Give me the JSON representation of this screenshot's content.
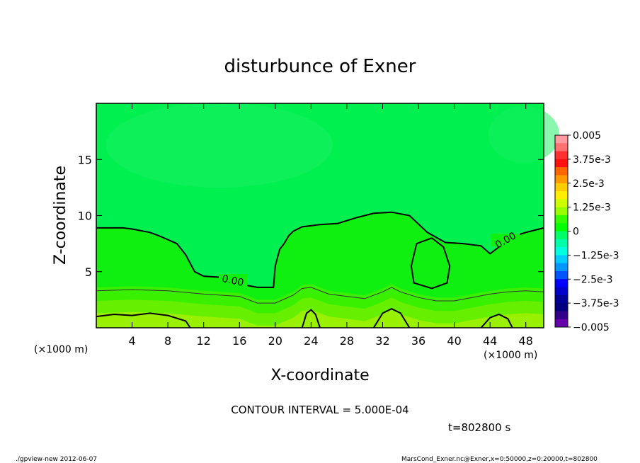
{
  "chart_data": {
    "type": "heatmap",
    "title": "disturbunce of Exner",
    "xlabel": "X-coordinate",
    "ylabel": "Z-coordinate",
    "x_unit_left": "(×1000 m)",
    "x_unit_right": "(×1000 m)",
    "xlim": [
      0,
      50
    ],
    "ylim": [
      0,
      20
    ],
    "x_ticks": [
      4,
      8,
      12,
      16,
      20,
      24,
      28,
      32,
      36,
      40,
      44,
      48
    ],
    "y_ticks": [
      5,
      10,
      15
    ],
    "contour_interval_text": "CONTOUR INTERVAL = 5.000E-04",
    "time_text": "t=802800 s",
    "contour_labels": [
      "0.00",
      "0.00"
    ],
    "zero_contour_upper": [
      [
        0,
        8.9
      ],
      [
        3,
        8.9
      ],
      [
        4,
        8.8
      ],
      [
        6,
        8.5
      ],
      [
        7,
        8.2
      ],
      [
        9,
        7.5
      ],
      [
        10,
        6.5
      ],
      [
        11,
        5.0
      ],
      [
        12,
        4.6
      ],
      [
        14,
        4.5
      ],
      [
        16,
        3.9
      ],
      [
        18,
        3.6
      ],
      [
        19.8,
        3.6
      ],
      [
        20,
        5.5
      ],
      [
        20.5,
        7.0
      ],
      [
        21,
        7.5
      ],
      [
        21.5,
        8.2
      ],
      [
        22,
        8.6
      ],
      [
        23,
        9.0
      ],
      [
        25,
        9.2
      ],
      [
        27,
        9.3
      ],
      [
        29,
        9.8
      ],
      [
        31,
        10.2
      ],
      [
        33,
        10.3
      ],
      [
        35,
        10.0
      ],
      [
        37,
        8.5
      ],
      [
        39,
        7.6
      ],
      [
        41,
        7.5
      ],
      [
        43,
        7.3
      ],
      [
        44,
        6.6
      ],
      [
        45,
        7.2
      ],
      [
        46,
        8.0
      ],
      [
        48,
        8.5
      ],
      [
        50,
        8.9
      ]
    ],
    "zero_contour_loop": [
      [
        37.5,
        8.0
      ],
      [
        35.8,
        7.5
      ],
      [
        35.2,
        5.5
      ],
      [
        35.5,
        4.0
      ],
      [
        37.5,
        3.5
      ],
      [
        39.2,
        4.0
      ],
      [
        39.5,
        5.5
      ],
      [
        38.8,
        7.2
      ],
      [
        37.5,
        8.0
      ]
    ],
    "lower_contour": [
      [
        0,
        3.3
      ],
      [
        4,
        3.4
      ],
      [
        8,
        3.3
      ],
      [
        12,
        3.0
      ],
      [
        16,
        2.8
      ],
      [
        18,
        2.2
      ],
      [
        20,
        2.2
      ],
      [
        22,
        2.9
      ],
      [
        23,
        3.5
      ],
      [
        24,
        3.6
      ],
      [
        26,
        3.0
      ],
      [
        28,
        2.8
      ],
      [
        30,
        2.6
      ],
      [
        32,
        3.2
      ],
      [
        33,
        3.6
      ],
      [
        34,
        3.2
      ],
      [
        36,
        2.7
      ],
      [
        38,
        2.4
      ],
      [
        40,
        2.4
      ],
      [
        42,
        2.7
      ],
      [
        44,
        3.0
      ],
      [
        46,
        3.2
      ],
      [
        48,
        3.3
      ],
      [
        50,
        3.2
      ]
    ],
    "bottom_contour_1": [
      [
        0,
        1.0
      ],
      [
        2,
        1.2
      ],
      [
        4,
        1.1
      ],
      [
        6,
        1.3
      ],
      [
        8,
        1.1
      ],
      [
        10,
        0.6
      ],
      [
        10.5,
        0
      ]
    ],
    "bottom_contour_2": [
      [
        23,
        0
      ],
      [
        23.5,
        1.3
      ],
      [
        24,
        1.6
      ],
      [
        24.5,
        1.2
      ],
      [
        25,
        0
      ]
    ],
    "bottom_contour_3": [
      [
        31,
        0
      ],
      [
        32,
        1.3
      ],
      [
        33,
        1.7
      ],
      [
        34,
        1.3
      ],
      [
        35,
        0
      ]
    ],
    "bottom_contour_4": [
      [
        43,
        0
      ],
      [
        44,
        0.9
      ],
      [
        45,
        1.2
      ],
      [
        46,
        0.8
      ],
      [
        46.5,
        0
      ]
    ],
    "colorbar": {
      "labels": [
        "0.005",
        "3.75e-3",
        "2.5e-3",
        "1.25e-3",
        "0",
        "−1.25e-3",
        "−2.5e-3",
        "−3.75e-3",
        "−0.005"
      ],
      "colors_top_to_bottom": [
        "#ff9aa0",
        "#ff7070",
        "#ff3030",
        "#ff1010",
        "#ff6600",
        "#ff9900",
        "#ffcc00",
        "#ffee00",
        "#ccff00",
        "#99ff00",
        "#33ff00",
        "#00ff00",
        "#00ff66",
        "#00ffaa",
        "#00ffe0",
        "#00ccff",
        "#0099ff",
        "#0055ff",
        "#0000ff",
        "#0000cc",
        "#000099",
        "#000080",
        "#330088",
        "#6600aa"
      ]
    },
    "fill_colors": {
      "upper": "#00f050",
      "upper_light": "#15f060",
      "mid": "#10f010",
      "band1": "#38f000",
      "band2": "#66f000",
      "bottom": "#99f000"
    }
  },
  "footer": {
    "left": "./gpview-new  2012-06-07",
    "right": "MarsCond_Exner.nc@Exner,x=0:50000,z=0:20000,t=802800"
  }
}
